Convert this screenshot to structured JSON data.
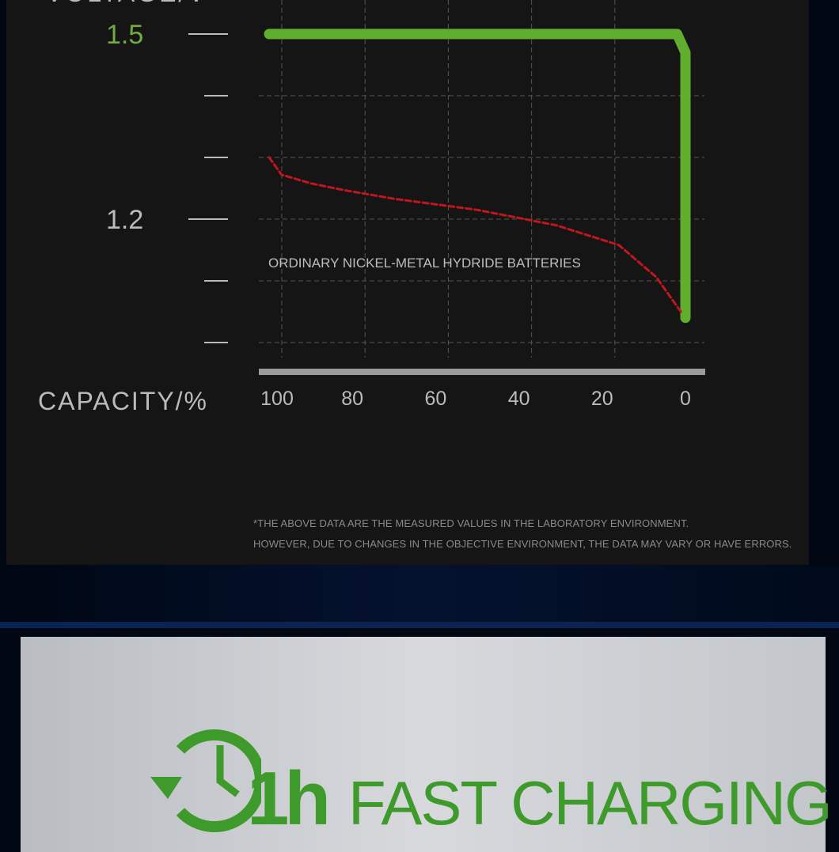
{
  "chart_data": {
    "type": "line",
    "ylabel": "VOLTAGE/V",
    "xlabel": "CAPACITY/%",
    "xlim": [
      100,
      0
    ],
    "ylim": [
      1.0,
      1.5
    ],
    "x_ticks": [
      "100",
      "80",
      "60",
      "40",
      "20",
      "0"
    ],
    "y_tick_labels": [
      "1.5",
      "1.2"
    ],
    "y_ticks": [
      1.5,
      1.4,
      1.3,
      1.2,
      1.1,
      1.0
    ],
    "grid": true,
    "series": [
      {
        "color": "#5fae2e",
        "style": "solid",
        "x": [
          100,
          2,
          0,
          0
        ],
        "y": [
          1.5,
          1.5,
          1.47,
          1.04
        ]
      },
      {
        "name": "ORDINARY NICKEL-METAL HYDRIDE BATTERIES",
        "color": "#c0161f",
        "style": "dashed",
        "x": [
          100,
          97,
          90,
          82,
          70,
          50,
          31,
          16,
          7,
          1
        ],
        "y": [
          1.3,
          1.272,
          1.258,
          1.247,
          1.233,
          1.215,
          1.19,
          1.158,
          1.106,
          1.049
        ]
      }
    ],
    "annotation": "ORDINARY NICKEL-METAL HYDRIDE BATTERIES"
  },
  "notes": [
    "*THE ABOVE DATA ARE THE MEASURED VALUES IN THE LABORATORY ENVIRONMENT.",
    "HOWEVER, DUE TO CHANGES IN THE OBJECTIVE ENVIRONMENT, THE DATA MAY VARY OR HAVE ERRORS."
  ],
  "banner": {
    "badge": "1h",
    "title": "FAST CHARGING",
    "color": "#3f9a2c",
    "icon": "clock-refresh-icon"
  }
}
